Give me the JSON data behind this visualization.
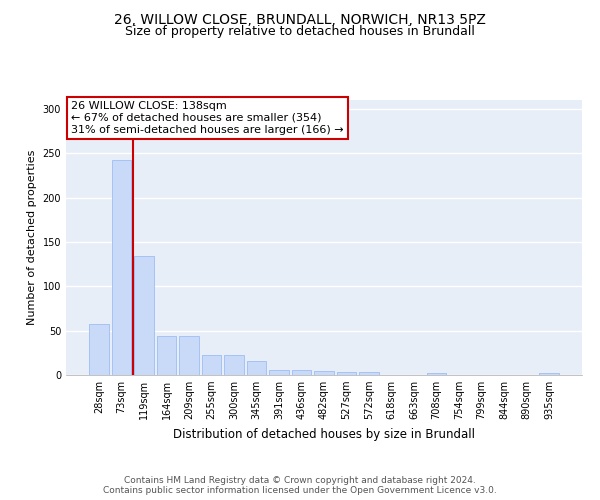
{
  "title_line1": "26, WILLOW CLOSE, BRUNDALL, NORWICH, NR13 5PZ",
  "title_line2": "Size of property relative to detached houses in Brundall",
  "xlabel": "Distribution of detached houses by size in Brundall",
  "ylabel": "Number of detached properties",
  "categories": [
    "28sqm",
    "73sqm",
    "119sqm",
    "164sqm",
    "209sqm",
    "255sqm",
    "300sqm",
    "345sqm",
    "391sqm",
    "436sqm",
    "482sqm",
    "527sqm",
    "572sqm",
    "618sqm",
    "663sqm",
    "708sqm",
    "754sqm",
    "799sqm",
    "844sqm",
    "890sqm",
    "935sqm"
  ],
  "values": [
    57,
    242,
    134,
    44,
    44,
    22,
    22,
    16,
    6,
    6,
    5,
    3,
    3,
    0,
    0,
    2,
    0,
    0,
    0,
    0,
    2
  ],
  "bar_color": "#c9daf8",
  "bar_edge_color": "#a4c2f4",
  "vline_position": 2.5,
  "vline_color": "#cc0000",
  "annotation_text": "26 WILLOW CLOSE: 138sqm\n← 67% of detached houses are smaller (354)\n31% of semi-detached houses are larger (166) →",
  "annotation_box_color": "#ffffff",
  "annotation_box_edge": "#cc0000",
  "annotation_fontsize": 8,
  "ylim": [
    0,
    310
  ],
  "yticks": [
    0,
    50,
    100,
    150,
    200,
    250,
    300
  ],
  "background_color": "#e8eef8",
  "grid_color": "#ffffff",
  "footer_text": "Contains HM Land Registry data © Crown copyright and database right 2024.\nContains public sector information licensed under the Open Government Licence v3.0.",
  "title_fontsize": 10,
  "subtitle_fontsize": 9,
  "xlabel_fontsize": 8.5,
  "ylabel_fontsize": 8,
  "tick_fontsize": 7,
  "footer_fontsize": 6.5
}
